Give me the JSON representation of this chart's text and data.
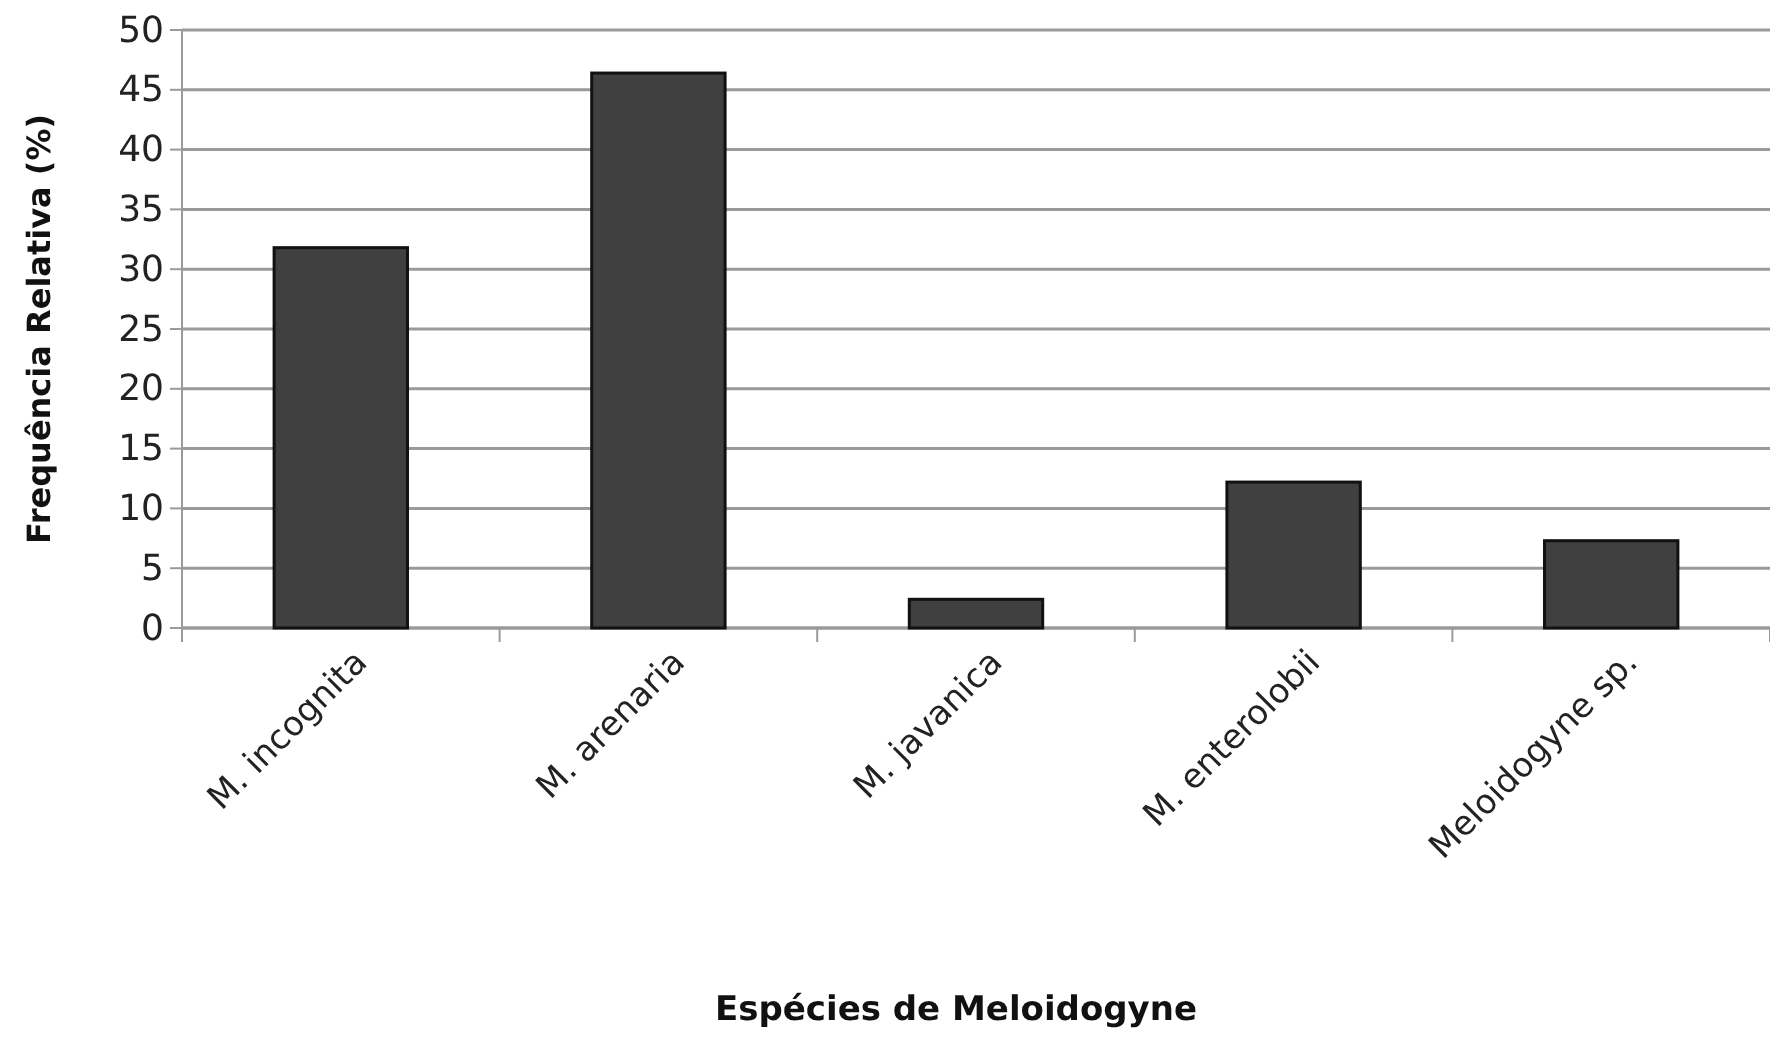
{
  "chart_data": {
    "type": "bar",
    "xlabel": "Espécies de Meloidogyne",
    "ylabel": "Frequência Relativa  (%)",
    "categories": [
      "M. incognita",
      "M. arenaria",
      "M. javanica",
      "M. enterolobii",
      "Meloidogyne sp."
    ],
    "values": [
      31.8,
      46.4,
      2.4,
      12.2,
      7.3
    ],
    "color": "#404040",
    "ylim": [
      0,
      50
    ],
    "yticks": [
      0,
      5,
      10,
      15,
      20,
      25,
      30,
      35,
      40,
      45,
      50
    ],
    "grid": "y"
  }
}
